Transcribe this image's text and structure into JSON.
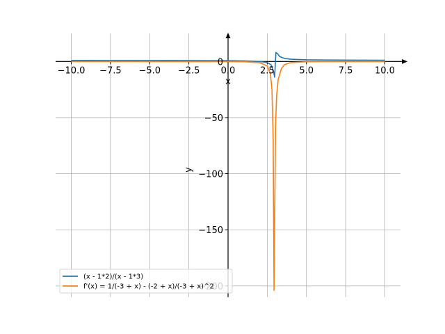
{
  "chart_data": {
    "type": "line",
    "xlabel": "x",
    "ylabel": "y",
    "xlim": [
      -11,
      11
    ],
    "ylim": [
      -210,
      25
    ],
    "grid": true,
    "legend_placement": "lower-left",
    "x_ticks": [
      -10,
      -7.5,
      -5,
      -2.5,
      0,
      2.5,
      5,
      7.5,
      10
    ],
    "x_tick_labels": [
      "−10.0",
      "−7.5",
      "−5.0",
      "−2.5",
      "0.0",
      "2.5",
      "5.0",
      "7.5",
      "10.0"
    ],
    "y_ticks": [
      0,
      -50,
      -100,
      -150,
      -200
    ],
    "y_tick_labels": [
      "0",
      "−50",
      "−100",
      "−150",
      "−200"
    ],
    "series": [
      {
        "name": "(x - 1*2)/(x - 1*3)",
        "color": "#1f77b4",
        "points": [
          [
            -10,
            0.92
          ],
          [
            -8,
            0.91
          ],
          [
            -6,
            0.89
          ],
          [
            -4,
            0.86
          ],
          [
            -2,
            0.8
          ],
          [
            0,
            0.67
          ],
          [
            1,
            0.5
          ],
          [
            2,
            0
          ],
          [
            2.5,
            -1
          ],
          [
            2.75,
            -3
          ],
          [
            2.9,
            -9
          ],
          [
            2.97,
            -14
          ],
          [
            3.05,
            8
          ],
          [
            3.15,
            7
          ],
          [
            3.3,
            4.3
          ],
          [
            3.6,
            2.7
          ],
          [
            4,
            2
          ],
          [
            5,
            1.5
          ],
          [
            6,
            1.33
          ],
          [
            8,
            1.2
          ],
          [
            10,
            1.14
          ]
        ]
      },
      {
        "name": "f'(x) = 1/(-3 + x) - (-2 + x)/(-3 + x)^2",
        "color": "#ff7f0e",
        "points": [
          [
            -10,
            -0.006
          ],
          [
            -6,
            -0.012
          ],
          [
            -4,
            -0.02
          ],
          [
            -2,
            -0.04
          ],
          [
            0,
            -0.11
          ],
          [
            1,
            -0.25
          ],
          [
            2,
            -1
          ],
          [
            2.5,
            -4
          ],
          [
            2.7,
            -11
          ],
          [
            2.8,
            -25
          ],
          [
            2.88,
            -69
          ],
          [
            2.93,
            -204
          ],
          [
            3.03,
            -57
          ],
          [
            3.1,
            -30
          ],
          [
            3.2,
            -16
          ],
          [
            3.4,
            -6.3
          ],
          [
            3.6,
            -2.8
          ],
          [
            4,
            -1
          ],
          [
            5,
            -0.25
          ],
          [
            6,
            -0.11
          ],
          [
            8,
            -0.04
          ],
          [
            10,
            -0.02
          ]
        ]
      }
    ]
  }
}
